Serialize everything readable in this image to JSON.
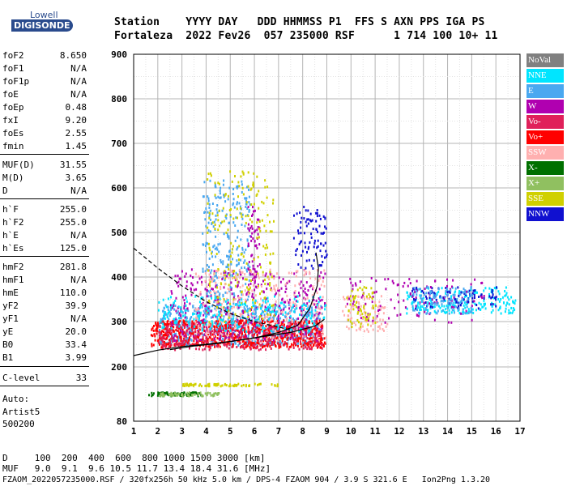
{
  "logo": {
    "top": "Lowell",
    "main": "DIGISONDE"
  },
  "header": {
    "line1": "Station    YYYY DAY   DDD HHMMSS P1  FFS S AXN PPS IGA PS",
    "line2": "Fortaleza  2022 Fev26  057 235000 RSF      1 714 100 10+ 11"
  },
  "params": [
    {
      "name": "foF2",
      "value": "8.650"
    },
    {
      "name": "foF1",
      "value": "N/A"
    },
    {
      "name": "foF1p",
      "value": "N/A"
    },
    {
      "name": "foE",
      "value": "N/A"
    },
    {
      "name": "foEp",
      "value": "0.48"
    },
    {
      "name": "fxI",
      "value": "9.20"
    },
    {
      "name": "foEs",
      "value": "2.55"
    },
    {
      "name": "fmin",
      "value": "1.45"
    },
    {
      "name": "MUF(D)",
      "value": "31.55"
    },
    {
      "name": "M(D)",
      "value": "3.65"
    },
    {
      "name": "D",
      "value": "N/A"
    },
    {
      "name": "h`F",
      "value": "255.0"
    },
    {
      "name": "h`F2",
      "value": "255.0"
    },
    {
      "name": "h`E",
      "value": "N/A"
    },
    {
      "name": "h`Es",
      "value": "125.0"
    },
    {
      "name": "hmF2",
      "value": "281.8"
    },
    {
      "name": "hmF1",
      "value": "N/A"
    },
    {
      "name": "hmE",
      "value": "110.0"
    },
    {
      "name": "yF2",
      "value": "39.9"
    },
    {
      "name": "yF1",
      "value": "N/A"
    },
    {
      "name": "yE",
      "value": "20.0"
    },
    {
      "name": "B0",
      "value": "33.4"
    },
    {
      "name": "B1",
      "value": "3.99"
    },
    {
      "name": "C-level",
      "value": "33"
    }
  ],
  "auto": {
    "l1": "Auto:",
    "l2": "Artist5",
    "l3": "500200"
  },
  "legend": [
    {
      "label": "NoVal",
      "color": "#808080"
    },
    {
      "label": "NNE",
      "color": "#00e5ff"
    },
    {
      "label": "E",
      "color": "#4aa8f0"
    },
    {
      "label": "W",
      "color": "#b000b0"
    },
    {
      "label": "Vo-",
      "color": "#e0205a"
    },
    {
      "label": "Vo+",
      "color": "#ff0000"
    },
    {
      "label": "SSW",
      "color": "#ffb0b0"
    },
    {
      "label": "X-",
      "color": "#007000"
    },
    {
      "label": "X+",
      "color": "#90c060"
    },
    {
      "label": "SSE",
      "color": "#d0d000"
    },
    {
      "label": "NNW",
      "color": "#1010d0"
    }
  ],
  "footer": {
    "line1": "D     100  200  400  600  800 1000 1500 3000 [km]",
    "line2": "MUF   9.0  9.1  9.6 10.5 11.7 13.4 18.4 31.6 [MHz]",
    "line3": "FZAOM_2022057235000.RSF / 320fx256h 50 kHz 5.0 km / DPS-4 FZAOM 904 / 3.9 S 321.6 E   Ion2Png 1.3.20"
  },
  "chart_data": {
    "type": "scatter",
    "xlim": [
      1,
      17
    ],
    "ylim": [
      80,
      900
    ],
    "x_ticks": [
      1,
      2,
      3,
      4,
      5,
      6,
      7,
      8,
      9,
      10,
      11,
      12,
      13,
      14,
      15,
      16,
      17
    ],
    "y_ticks": [
      80,
      200,
      300,
      400,
      500,
      600,
      700,
      800,
      900
    ],
    "grid": true,
    "legend_position": "right",
    "clusters": [
      {
        "color": "#4aa8f0",
        "x": [
          2.0,
          8.8
        ],
        "y": [
          250,
          340
        ],
        "n": 700
      },
      {
        "color": "#4aa8f0",
        "x": [
          3.8,
          5.8
        ],
        "y": [
          330,
          620
        ],
        "n": 260
      },
      {
        "color": "#ff0000",
        "x": [
          1.7,
          8.9
        ],
        "y": [
          245,
          305
        ],
        "n": 750
      },
      {
        "color": "#e0205a",
        "x": [
          2.0,
          8.8
        ],
        "y": [
          240,
          300
        ],
        "n": 350
      },
      {
        "color": "#b000b0",
        "x": [
          2.5,
          8.9
        ],
        "y": [
          260,
          420
        ],
        "n": 380
      },
      {
        "color": "#b000b0",
        "x": [
          5.7,
          6.2
        ],
        "y": [
          380,
          560
        ],
        "n": 60
      },
      {
        "color": "#d0d000",
        "x": [
          4.0,
          6.8
        ],
        "y": [
          300,
          640
        ],
        "n": 220
      },
      {
        "color": "#d0d000",
        "x": [
          3.0,
          7.0
        ],
        "y": [
          160,
          165
        ],
        "n": 70
      },
      {
        "color": "#ffb0b0",
        "x": [
          3.5,
          9.0
        ],
        "y": [
          260,
          420
        ],
        "n": 280
      },
      {
        "color": "#ffb0b0",
        "x": [
          9.6,
          11.5
        ],
        "y": [
          280,
          360
        ],
        "n": 90
      },
      {
        "color": "#00e5ff",
        "x": [
          2.0,
          9.0
        ],
        "y": [
          280,
          360
        ],
        "n": 220
      },
      {
        "color": "#00e5ff",
        "x": [
          12.2,
          16.8
        ],
        "y": [
          320,
          380
        ],
        "n": 220
      },
      {
        "color": "#1010d0",
        "x": [
          7.6,
          9.0
        ],
        "y": [
          420,
          560
        ],
        "n": 90
      },
      {
        "color": "#1010d0",
        "x": [
          12.5,
          16.0
        ],
        "y": [
          330,
          380
        ],
        "n": 90
      },
      {
        "color": "#007000",
        "x": [
          1.6,
          3.8
        ],
        "y": [
          138,
          146
        ],
        "n": 80
      },
      {
        "color": "#90c060",
        "x": [
          2.0,
          4.5
        ],
        "y": [
          138,
          146
        ],
        "n": 60
      },
      {
        "color": "#b000b0",
        "x": [
          9.8,
          15.5
        ],
        "y": [
          300,
          400
        ],
        "n": 110
      },
      {
        "color": "#d0d000",
        "x": [
          9.8,
          11.0
        ],
        "y": [
          290,
          380
        ],
        "n": 60
      },
      {
        "color": "#4aa8f0",
        "x": [
          12.5,
          15.0
        ],
        "y": [
          320,
          380
        ],
        "n": 100
      }
    ],
    "profile_curves": [
      {
        "style": "dashed",
        "points": [
          [
            1,
            465
          ],
          [
            2,
            420
          ],
          [
            3,
            380
          ],
          [
            4,
            345
          ],
          [
            5,
            318
          ],
          [
            6,
            300
          ],
          [
            7,
            288
          ],
          [
            7.6,
            280
          ]
        ]
      },
      {
        "style": "solid",
        "points": [
          [
            1,
            225
          ],
          [
            2,
            237
          ],
          [
            3,
            245
          ],
          [
            4,
            250
          ],
          [
            5,
            256
          ],
          [
            6,
            264
          ],
          [
            7,
            276
          ],
          [
            7.8,
            292
          ],
          [
            8.3,
            330
          ],
          [
            8.6,
            380
          ],
          [
            8.65,
            420
          ],
          [
            8.55,
            455
          ]
        ]
      },
      {
        "style": "solid",
        "points": [
          [
            2.5,
            238
          ],
          [
            3.5,
            246
          ],
          [
            4.5,
            252
          ],
          [
            5.5,
            260
          ],
          [
            6.5,
            268
          ],
          [
            7.5,
            276
          ],
          [
            8.5,
            290
          ],
          [
            8.9,
            305
          ]
        ]
      }
    ]
  }
}
